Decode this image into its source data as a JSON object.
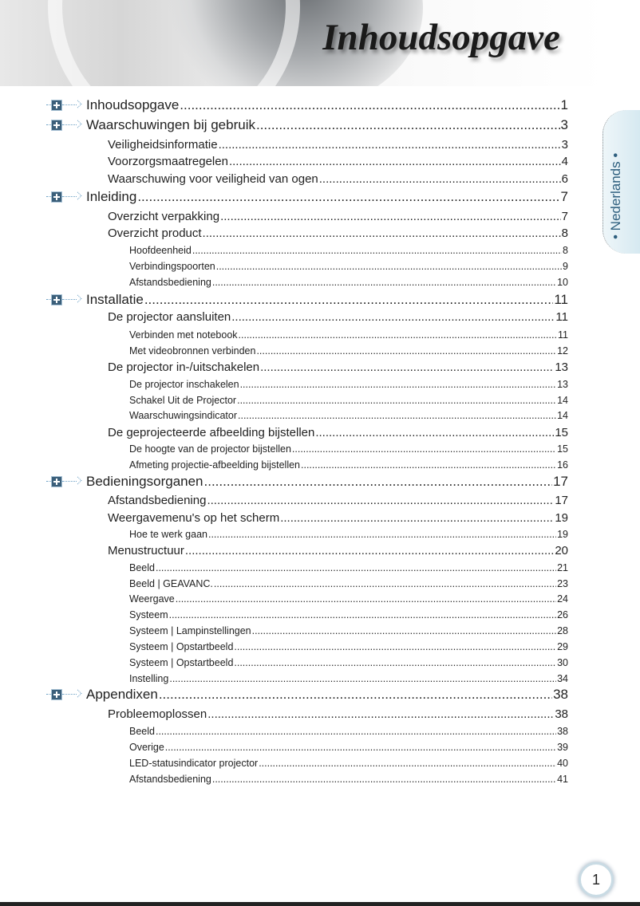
{
  "header": {
    "title": "Inhoudsopgave"
  },
  "side_tab": {
    "label": "Nederlands"
  },
  "page_number": "1",
  "toc": [
    {
      "level": 1,
      "title": "Inhoudsopgave",
      "page": "1"
    },
    {
      "level": 1,
      "title": "Waarschuwingen bij gebruik",
      "page": "3"
    },
    {
      "level": 2,
      "title": "Veiligheidsinformatie",
      "page": "3"
    },
    {
      "level": 2,
      "title": "Voorzorgsmaatregelen",
      "page": "4"
    },
    {
      "level": 2,
      "title": "Waarschuwing voor veiligheid van ogen",
      "page": "6"
    },
    {
      "level": 1,
      "title": "Inleiding",
      "page": "7"
    },
    {
      "level": 2,
      "title": "Overzicht verpakking",
      "page": "7"
    },
    {
      "level": 2,
      "title": "Overzicht product",
      "page": "8"
    },
    {
      "level": 3,
      "title": "Hoofdeenheid",
      "page": "8"
    },
    {
      "level": 3,
      "title": "Verbindingspoorten",
      "page": "9"
    },
    {
      "level": 3,
      "title": "Afstandsbediening",
      "page": "10"
    },
    {
      "level": 1,
      "title": "Installatie",
      "page": "11"
    },
    {
      "level": 2,
      "title": "De projector aansluiten",
      "page": "11"
    },
    {
      "level": 3,
      "title": "Verbinden met notebook",
      "page": "11"
    },
    {
      "level": 3,
      "title": "Met videobronnen verbinden",
      "page": "12"
    },
    {
      "level": 2,
      "title": "De projector in-/uitschakelen",
      "page": "13"
    },
    {
      "level": 3,
      "title": "De projector inschakelen",
      "page": "13"
    },
    {
      "level": 3,
      "title": "Schakel Uit de Projector",
      "page": "14"
    },
    {
      "level": 3,
      "title": "Waarschuwingsindicator",
      "page": "14"
    },
    {
      "level": 2,
      "title": "De geprojecteerde afbeelding bijstellen",
      "page": "15"
    },
    {
      "level": 3,
      "title": "De hoogte van de projector bijstellen",
      "page": "15"
    },
    {
      "level": 3,
      "title": "Afmeting projectie-afbeelding bijstellen",
      "page": "16"
    },
    {
      "level": 1,
      "title": "Bedieningsorganen",
      "page": "17"
    },
    {
      "level": 2,
      "title": "Afstandsbediening",
      "page": "17"
    },
    {
      "level": 2,
      "title": "Weergavemenu's op het scherm",
      "page": "19"
    },
    {
      "level": 3,
      "title": "Hoe te werk gaan",
      "page": "19"
    },
    {
      "level": 2,
      "title": "Menustructuur",
      "page": "20"
    },
    {
      "level": 3,
      "title": "Beeld",
      "page": "21"
    },
    {
      "level": 3,
      "title": "Beeld | GEAVANC.",
      "page": "23"
    },
    {
      "level": 3,
      "title": "Weergave",
      "page": "24"
    },
    {
      "level": 3,
      "title": "Systeem",
      "page": "26"
    },
    {
      "level": 3,
      "title": "Systeem | Lampinstellingen",
      "page": "28"
    },
    {
      "level": 3,
      "title": "Systeem | Opstartbeeld",
      "page": "29"
    },
    {
      "level": 3,
      "title": "Systeem | Opstartbeeld",
      "page": "30"
    },
    {
      "level": 3,
      "title": "Instelling",
      "page": "34"
    },
    {
      "level": 1,
      "title": "Appendixen",
      "page": "38"
    },
    {
      "level": 2,
      "title": "Probleemoplossen",
      "page": "38"
    },
    {
      "level": 3,
      "title": "Beeld",
      "page": "38"
    },
    {
      "level": 3,
      "title": "Overige",
      "page": "39"
    },
    {
      "level": 3,
      "title": "LED-statusindicator projector",
      "page": "40"
    },
    {
      "level": 3,
      "title": "Afstandsbediening",
      "page": "41"
    }
  ]
}
